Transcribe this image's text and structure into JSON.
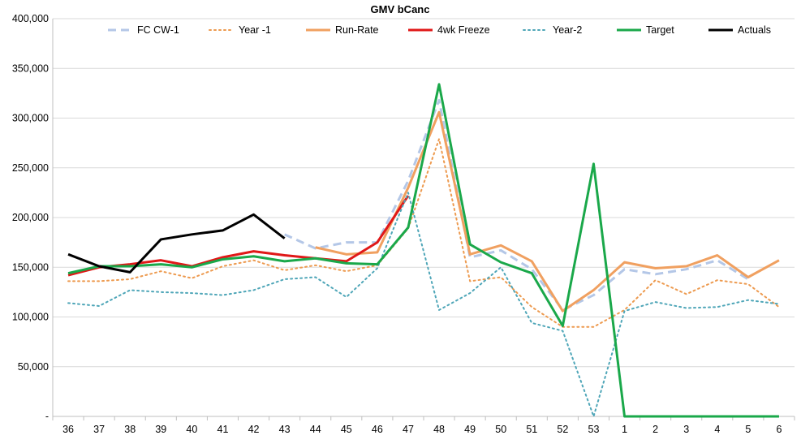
{
  "chart_data": {
    "type": "line",
    "title": "GMV bCanc",
    "xlabel": "",
    "ylabel": "",
    "categories": [
      "36",
      "37",
      "38",
      "39",
      "40",
      "41",
      "42",
      "43",
      "44",
      "45",
      "46",
      "47",
      "48",
      "49",
      "50",
      "51",
      "52",
      "53",
      "1",
      "2",
      "3",
      "4",
      "5",
      "6"
    ],
    "ylim": [
      0,
      400000
    ],
    "yticks": [
      0,
      50000,
      100000,
      150000,
      200000,
      250000,
      300000,
      350000,
      400000
    ],
    "ytick_labels": [
      "-",
      "50,000",
      "100,000",
      "150,000",
      "200,000",
      "250,000",
      "300,000",
      "350,000",
      "400,000"
    ],
    "grid": "horizontal",
    "legend_position": "top",
    "series": [
      {
        "name": "FC CW-1",
        "color": "#b4c7e7",
        "style": "dashed",
        "width": 3,
        "values": [
          null,
          null,
          null,
          null,
          null,
          null,
          null,
          183000,
          169000,
          175000,
          175000,
          237000,
          318000,
          160000,
          167000,
          148000,
          107000,
          122000,
          148000,
          143000,
          148000,
          157000,
          138000,
          null
        ]
      },
      {
        "name": "Year -1",
        "color": "#ed9a4f",
        "style": "dotted",
        "width": 2,
        "values": [
          136000,
          136000,
          138000,
          146000,
          139000,
          151000,
          157000,
          147000,
          152000,
          146000,
          152000,
          189000,
          279000,
          136000,
          140000,
          110000,
          90000,
          90000,
          107000,
          137000,
          123000,
          137000,
          133000,
          110000
        ]
      },
      {
        "name": "Run-Rate",
        "color": "#f0a060",
        "style": "solid",
        "width": 3,
        "values": [
          null,
          null,
          null,
          null,
          null,
          null,
          null,
          null,
          170000,
          163000,
          165000,
          230000,
          306000,
          163000,
          172000,
          156000,
          106000,
          127000,
          155000,
          149000,
          151000,
          162000,
          140000,
          157000
        ]
      },
      {
        "name": "4wk Freeze",
        "color": "#e01818",
        "style": "solid",
        "width": 3,
        "values": [
          142000,
          150000,
          153000,
          157000,
          151000,
          160000,
          166000,
          162000,
          159000,
          156000,
          175000,
          222000,
          null,
          null,
          null,
          null,
          null,
          null,
          null,
          null,
          null,
          null,
          null,
          null
        ]
      },
      {
        "name": "Year-2",
        "color": "#4fa6b8",
        "style": "dotted",
        "width": 2,
        "values": [
          114000,
          111000,
          127000,
          125000,
          124000,
          122000,
          127000,
          138000,
          140000,
          120000,
          149000,
          225000,
          107000,
          124000,
          150000,
          94000,
          86000,
          0,
          106000,
          115000,
          109000,
          110000,
          117000,
          113000
        ]
      },
      {
        "name": "Target",
        "color": "#1aa84a",
        "style": "solid",
        "width": 3,
        "values": [
          144000,
          151000,
          151000,
          153000,
          150000,
          158000,
          161000,
          156000,
          159000,
          154000,
          153000,
          190000,
          334000,
          173000,
          155000,
          144000,
          91000,
          254000,
          0,
          0,
          0,
          0,
          0,
          0
        ]
      },
      {
        "name": "Actuals",
        "color": "#000000",
        "style": "solid",
        "width": 3,
        "values": [
          163000,
          151000,
          145000,
          178000,
          183000,
          187000,
          203000,
          179000,
          null,
          null,
          null,
          null,
          null,
          null,
          null,
          null,
          null,
          null,
          null,
          null,
          null,
          null,
          null,
          null
        ]
      }
    ]
  }
}
